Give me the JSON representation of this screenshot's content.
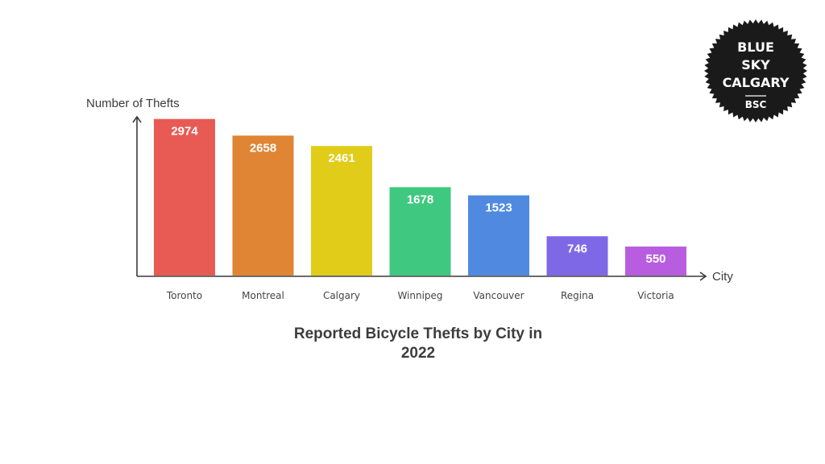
{
  "chart_data": {
    "type": "bar",
    "title_lines": [
      "Reported Bicycle Thefts by City in",
      "2022"
    ],
    "xlabel": "City",
    "ylabel": "Number of Thefts",
    "categories": [
      "Toronto",
      "Montreal",
      "Calgary",
      "Winnipeg",
      "Vancouver",
      "Regina",
      "Victoria"
    ],
    "values": [
      2974,
      2658,
      2461,
      1678,
      1523,
      746,
      550
    ],
    "colors": [
      "#e85a54",
      "#e08534",
      "#e2cc1a",
      "#3fc87f",
      "#4f8ae0",
      "#7f68e6",
      "#b85ddf"
    ],
    "ylim": [
      0,
      3000
    ],
    "grid": false,
    "legend": "none"
  },
  "logo": {
    "lines": [
      "BLUE",
      "SKY",
      "CALGARY"
    ],
    "abbr": "BSC",
    "color": "#1a1a1a"
  }
}
